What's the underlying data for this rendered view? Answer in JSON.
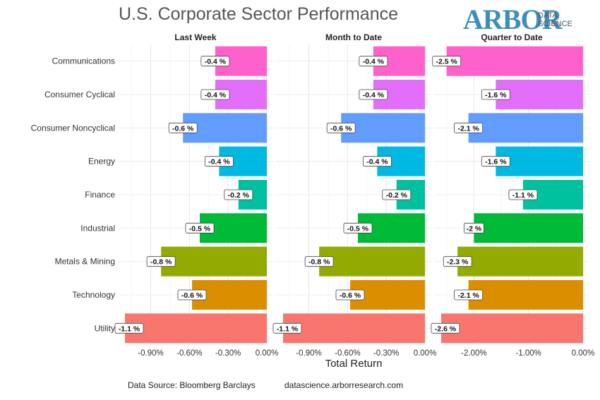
{
  "title": "U.S. Corporate Sector Performance",
  "logo": {
    "word": "ARBOR",
    "sub1": "DATA",
    "sub2": "SCIENCE",
    "color": "#3d8eb9"
  },
  "footer": {
    "source": "Data Source: Bloomberg Barclays",
    "url": "datascience.arborresearch.com"
  },
  "chart_data": {
    "type": "bar",
    "orientation": "horizontal",
    "xlabel": "Total Return",
    "categories": [
      "Communications",
      "Consumer Cyclical",
      "Consumer Noncyclical",
      "Energy",
      "Finance",
      "Industrial",
      "Metals & Mining",
      "Technology",
      "Utility"
    ],
    "colors": [
      "#ff61cc",
      "#e36efc",
      "#619cff",
      "#00b9e3",
      "#00c19f",
      "#00ba38",
      "#93aa00",
      "#db8e00",
      "#f8766d"
    ],
    "grid": true,
    "panels": [
      {
        "name": "Last Week",
        "values": [
          -0.4,
          -0.4,
          -0.65,
          -0.37,
          -0.22,
          -0.52,
          -0.82,
          -0.58,
          -1.1
        ],
        "labels": [
          "-0.4 %",
          "-0.4 %",
          "-0.6 %",
          "-0.4 %",
          "-0.2 %",
          "-0.5 %",
          "-0.8 %",
          "-0.6 %",
          "-1.1 %"
        ],
        "xlim": [
          -1.1,
          0
        ],
        "ticks": [
          -0.9,
          -0.6,
          -0.3,
          0
        ],
        "tick_labels": [
          "-0.90%",
          "-0.60%",
          "-0.30%",
          "0.00%"
        ]
      },
      {
        "name": "Month to Date",
        "values": [
          -0.4,
          -0.4,
          -0.65,
          -0.37,
          -0.22,
          -0.52,
          -0.82,
          -0.58,
          -1.1
        ],
        "labels": [
          "-0.4 %",
          "-0.4 %",
          "-0.6 %",
          "-0.4 %",
          "-0.2 %",
          "-0.5 %",
          "-0.8 %",
          "-0.6 %",
          "-1.1 %"
        ],
        "xlim": [
          -1.1,
          0
        ],
        "ticks": [
          -0.9,
          -0.6,
          -0.3,
          0
        ],
        "tick_labels": [
          "-0.90%",
          "-0.60%",
          "-0.30%",
          "0.00%"
        ]
      },
      {
        "name": "Quarter to Date",
        "values": [
          -2.5,
          -1.6,
          -2.1,
          -1.6,
          -1.1,
          -2.0,
          -2.3,
          -2.1,
          -2.6
        ],
        "labels": [
          "-2.5 %",
          "-1.6 %",
          "-2.1 %",
          "-1.6 %",
          "-1.1 %",
          "-2 %",
          "-2.3 %",
          "-2.1 %",
          "-2.6 %"
        ],
        "xlim": [
          -2.6,
          0
        ],
        "ticks": [
          -2,
          -1,
          0
        ],
        "tick_labels": [
          "-2.00%",
          "-1.00%",
          "0.00%"
        ]
      }
    ]
  }
}
